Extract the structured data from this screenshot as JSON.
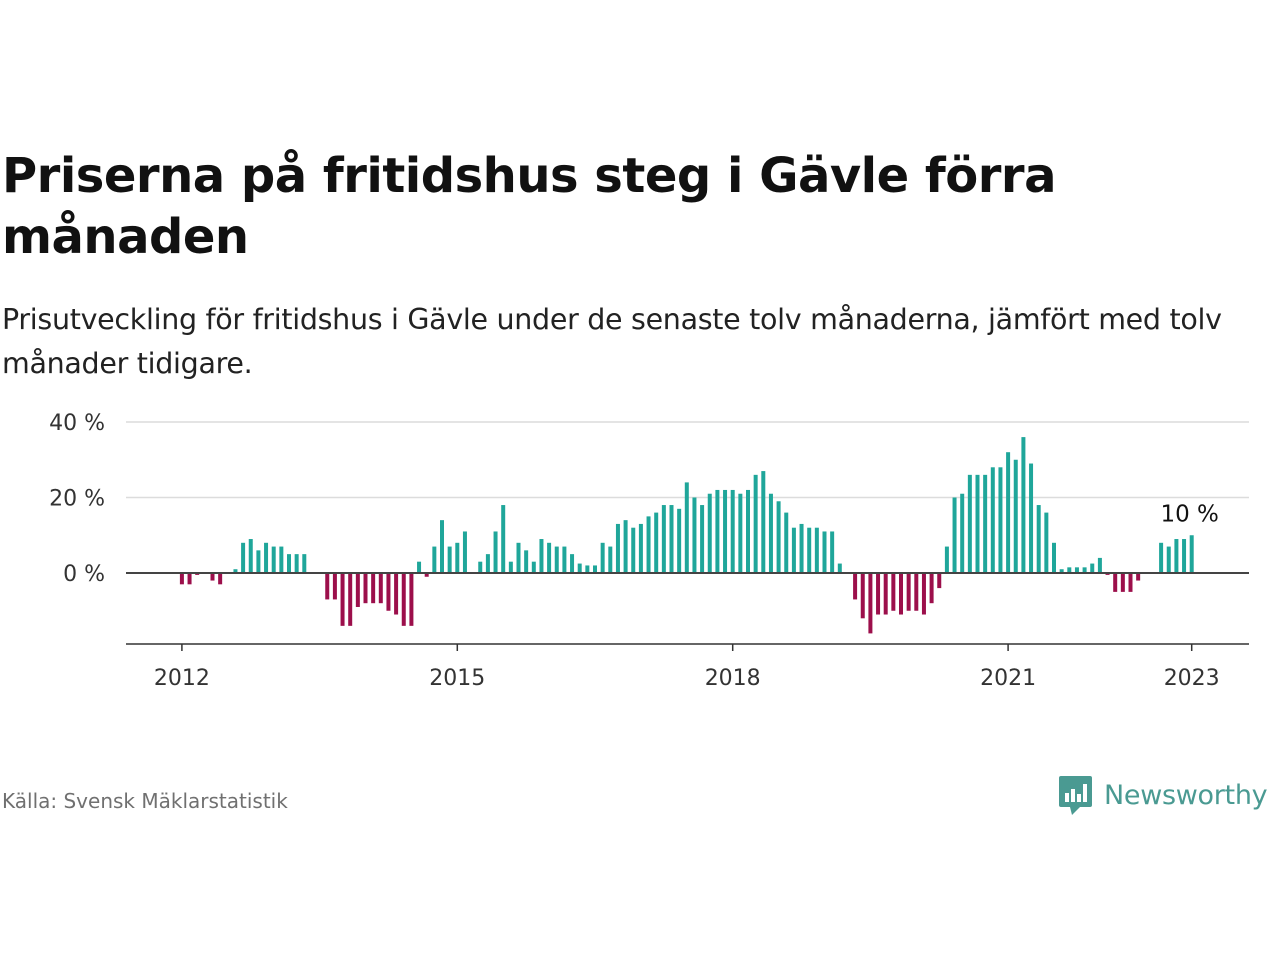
{
  "title": "Priserna på fritidshus steg i Gävle förra månaden",
  "subtitle": "Prisutveckling för fritidshus i Gävle under de senaste tolv månaderna, jämfört med tolv månader tidigare.",
  "source": "Källa: Svensk Mäklarstatistik",
  "brand": {
    "name": "Newsworthy",
    "icon": "newsworthy-logo-icon",
    "color": "#4a9a92"
  },
  "colors": {
    "positive": "#1fa69a",
    "negative": "#9c0f4b"
  },
  "chart_data": {
    "type": "bar",
    "x_start": "2011-07",
    "x_end": "2023-01",
    "ylim": [
      -19,
      40
    ],
    "yticks": [
      {
        "value": 0,
        "label": "0 %"
      },
      {
        "value": 20,
        "label": "20 %"
      },
      {
        "value": 40,
        "label": "40 %"
      }
    ],
    "xticks": [
      {
        "value": "2012-01",
        "label": "2012"
      },
      {
        "value": "2015-01",
        "label": "2015"
      },
      {
        "value": "2018-01",
        "label": "2018"
      },
      {
        "value": "2021-01",
        "label": "2021"
      },
      {
        "value": "2023-01",
        "label": "2023"
      }
    ],
    "last_label": "10 %",
    "values": [
      0,
      0,
      0,
      0,
      0,
      0,
      -3,
      -3,
      -0.5,
      0,
      -2,
      -3,
      0,
      1,
      8,
      9,
      6,
      8,
      7,
      7,
      5,
      5,
      5,
      0,
      0,
      -7,
      -7,
      -14,
      -14,
      -9,
      -8,
      -8,
      -8,
      -10,
      -11,
      -14,
      -14,
      3,
      -1,
      7,
      14,
      7,
      8,
      11,
      0,
      3,
      5,
      11,
      18,
      3,
      8,
      6,
      3,
      9,
      8,
      7,
      7,
      5,
      2.5,
      2,
      2,
      8,
      7,
      13,
      14,
      12,
      13,
      15,
      16,
      18,
      18,
      17,
      24,
      20,
      18,
      21,
      22,
      22,
      22,
      21,
      22,
      26,
      27,
      21,
      19,
      16,
      12,
      13,
      12,
      12,
      11,
      11,
      2.5,
      0,
      -7,
      -12,
      -16,
      -11,
      -11,
      -10,
      -11,
      -10,
      -10,
      -11,
      -8,
      -4,
      7,
      20,
      21,
      26,
      26,
      26,
      28,
      28,
      32,
      30,
      36,
      29,
      18,
      16,
      8,
      1,
      1.5,
      1.5,
      1.5,
      2.5,
      4,
      -0.5,
      -5,
      -5,
      -5,
      -2,
      0,
      0,
      8,
      7,
      9,
      9,
      10
    ]
  }
}
